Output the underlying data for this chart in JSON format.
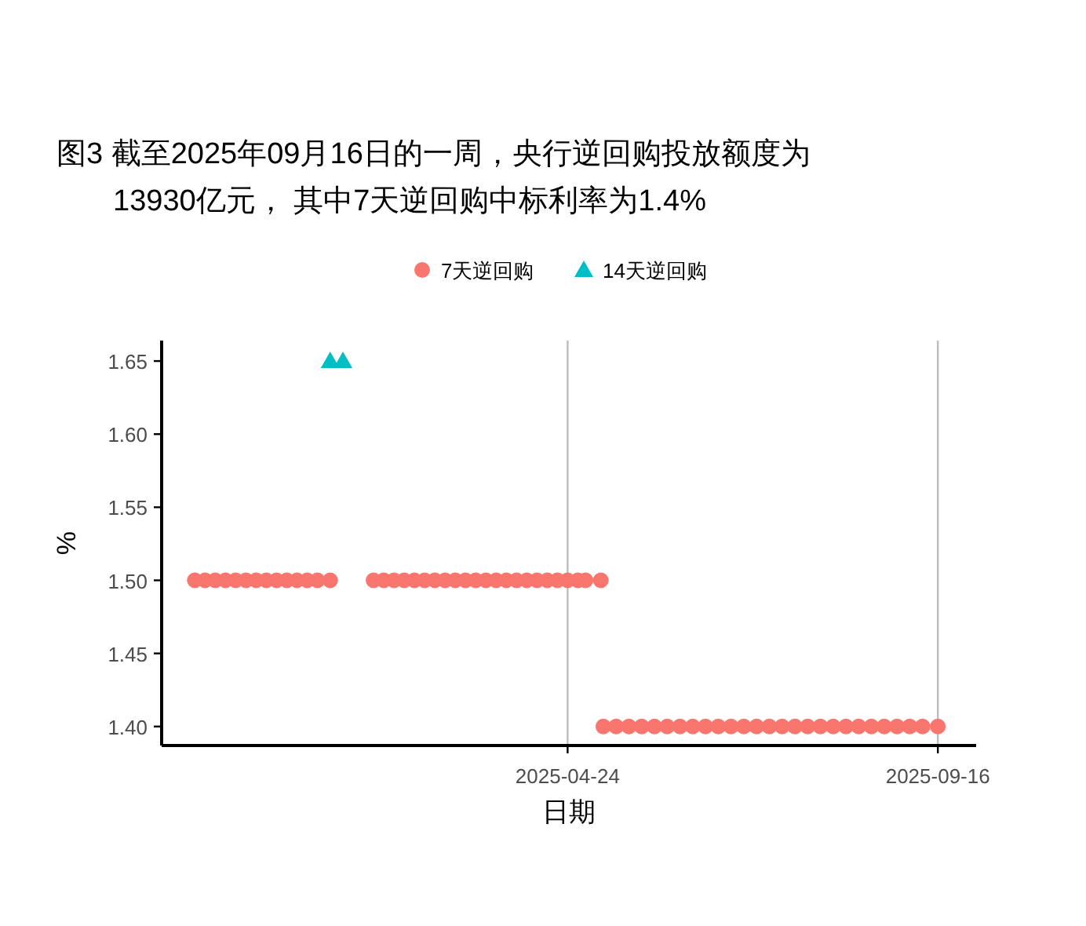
{
  "chart_data": {
    "type": "scatter",
    "title": "图3  截至2025年09月16日的一周，央行逆回购投放额度为\n13930亿元， 其中7天逆回购中标利率为1.4%",
    "xlabel": "日期",
    "ylabel": "%",
    "series": [
      {
        "name": "7天逆回购",
        "color": "#f8766d",
        "marker": "circle",
        "x": [
          "2024-11-29",
          "2024-12-03",
          "2024-12-07",
          "2024-12-11",
          "2024-12-15",
          "2024-12-19",
          "2024-12-23",
          "2024-12-27",
          "2024-12-31",
          "2025-01-04",
          "2025-01-08",
          "2025-01-12",
          "2025-01-16",
          "2025-01-21",
          "2025-02-07",
          "2025-02-11",
          "2025-02-15",
          "2025-02-19",
          "2025-02-23",
          "2025-02-27",
          "2025-03-03",
          "2025-03-07",
          "2025-03-11",
          "2025-03-15",
          "2025-03-19",
          "2025-03-23",
          "2025-03-27",
          "2025-03-31",
          "2025-04-04",
          "2025-04-08",
          "2025-04-12",
          "2025-04-16",
          "2025-04-20",
          "2025-04-24",
          "2025-04-28",
          "2025-05-01",
          "2025-05-07",
          "2025-05-08",
          "2025-05-13",
          "2025-05-18",
          "2025-05-23",
          "2025-05-28",
          "2025-06-02",
          "2025-06-07",
          "2025-06-12",
          "2025-06-17",
          "2025-06-22",
          "2025-06-27",
          "2025-07-02",
          "2025-07-07",
          "2025-07-12",
          "2025-07-17",
          "2025-07-22",
          "2025-07-27",
          "2025-08-01",
          "2025-08-06",
          "2025-08-11",
          "2025-08-16",
          "2025-08-21",
          "2025-08-26",
          "2025-08-31",
          "2025-09-05",
          "2025-09-10",
          "2025-09-16"
        ],
        "values": [
          1.5,
          1.5,
          1.5,
          1.5,
          1.5,
          1.5,
          1.5,
          1.5,
          1.5,
          1.5,
          1.5,
          1.5,
          1.5,
          1.5,
          1.5,
          1.5,
          1.5,
          1.5,
          1.5,
          1.5,
          1.5,
          1.5,
          1.5,
          1.5,
          1.5,
          1.5,
          1.5,
          1.5,
          1.5,
          1.5,
          1.5,
          1.5,
          1.5,
          1.5,
          1.5,
          1.5,
          1.5,
          1.4,
          1.4,
          1.4,
          1.4,
          1.4,
          1.4,
          1.4,
          1.4,
          1.4,
          1.4,
          1.4,
          1.4,
          1.4,
          1.4,
          1.4,
          1.4,
          1.4,
          1.4,
          1.4,
          1.4,
          1.4,
          1.4,
          1.4,
          1.4,
          1.4,
          1.4,
          1.4
        ]
      },
      {
        "name": "14天逆回购",
        "color": "#00bfc4",
        "marker": "triangle",
        "x": [
          "2025-01-21",
          "2025-01-26"
        ],
        "values": [
          1.65,
          1.65
        ]
      }
    ],
    "xlim": [
      "2024-11-16",
      "2025-10-01"
    ],
    "xticks": [
      "2025-04-24",
      "2025-09-16"
    ],
    "ylim": [
      1.387,
      1.664
    ],
    "yticks": [
      {
        "value": 1.4,
        "label": "1.40"
      },
      {
        "value": 1.45,
        "label": "1.45"
      },
      {
        "value": 1.5,
        "label": "1.50"
      },
      {
        "value": 1.55,
        "label": "1.55"
      },
      {
        "value": 1.6,
        "label": "1.60"
      },
      {
        "value": 1.65,
        "label": "1.65"
      }
    ],
    "grid": "x",
    "legend": "top"
  }
}
